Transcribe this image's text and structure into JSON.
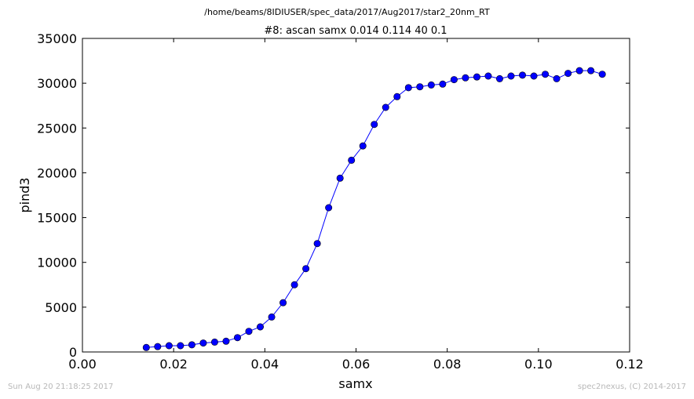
{
  "chart_data": {
    "type": "line",
    "suptitle": "/home/beams/8IDIUSER/spec_data/2017/Aug2017/star2_20nm_RT",
    "title": "#8: ascan  samx 0.014 0.114  40 0.1",
    "xlabel": "samx",
    "ylabel": "pind3",
    "xlim": [
      0.0,
      0.12
    ],
    "ylim": [
      0,
      35000
    ],
    "xticks": [
      "0.00",
      "0.02",
      "0.04",
      "0.06",
      "0.08",
      "0.10",
      "0.12"
    ],
    "yticks": [
      "0",
      "5000",
      "10000",
      "15000",
      "20000",
      "25000",
      "30000",
      "35000"
    ],
    "grid": false,
    "marker": "circle",
    "line_color": "#0000ff",
    "series": [
      {
        "x": [
          0.014,
          0.0165,
          0.019,
          0.0215,
          0.024,
          0.0265,
          0.029,
          0.0315,
          0.034,
          0.0365,
          0.039,
          0.0415,
          0.044,
          0.0465,
          0.049,
          0.0515,
          0.054,
          0.0565,
          0.059,
          0.0615,
          0.064,
          0.0665,
          0.069,
          0.0715,
          0.074,
          0.0765,
          0.079,
          0.0815,
          0.084,
          0.0865,
          0.089,
          0.0915,
          0.094,
          0.0965,
          0.099,
          0.1015,
          0.104,
          0.1065,
          0.109,
          0.1115,
          0.114
        ],
        "y": [
          500,
          600,
          700,
          700,
          800,
          1000,
          1100,
          1200,
          1600,
          2300,
          2800,
          3900,
          5500,
          7500,
          9300,
          12100,
          16100,
          19400,
          21400,
          23000,
          25400,
          27300,
          28500,
          29500,
          29600,
          29800,
          29900,
          30400,
          30600,
          30700,
          30800,
          30500,
          30800,
          30900,
          30800,
          31000,
          30500,
          31100,
          31400,
          31400,
          31000
        ]
      }
    ]
  },
  "footer": {
    "timestamp": "Sun Aug 20 21:18:25 2017",
    "credit": "spec2nexus, (C) 2014-2017"
  }
}
